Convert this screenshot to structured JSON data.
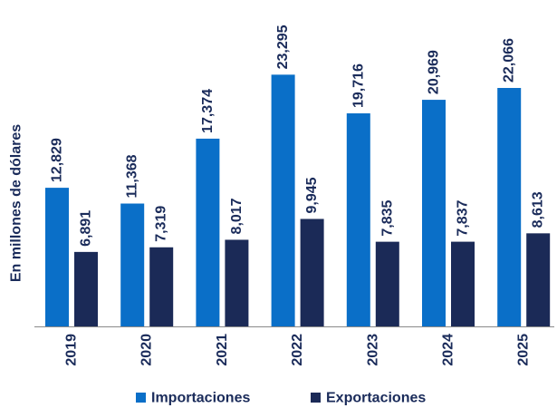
{
  "chart_data": {
    "type": "bar",
    "categories": [
      "2019",
      "2020",
      "2021",
      "2022",
      "2023",
      "2024",
      "2025"
    ],
    "series": [
      {
        "name": "Importaciones",
        "values": [
          12829,
          11368,
          17374,
          23295,
          19716,
          20969,
          22066
        ],
        "labels": [
          "12,829",
          "11,368",
          "17,374",
          "23,295",
          "19,716",
          "20,969",
          "22,066"
        ],
        "color": "#0a6fc8"
      },
      {
        "name": "Exportaciones",
        "values": [
          6891,
          7319,
          8017,
          9945,
          7835,
          7837,
          8613
        ],
        "labels": [
          "6,891",
          "7,319",
          "8,017",
          "9,945",
          "7,835",
          "7,837",
          "8,613"
        ],
        "color": "#1b2a57"
      }
    ],
    "title": "",
    "xlabel": "",
    "ylabel": "En millones de dólares",
    "ylim": [
      0,
      24500
    ],
    "grid": false,
    "legend_position": "bottom"
  }
}
